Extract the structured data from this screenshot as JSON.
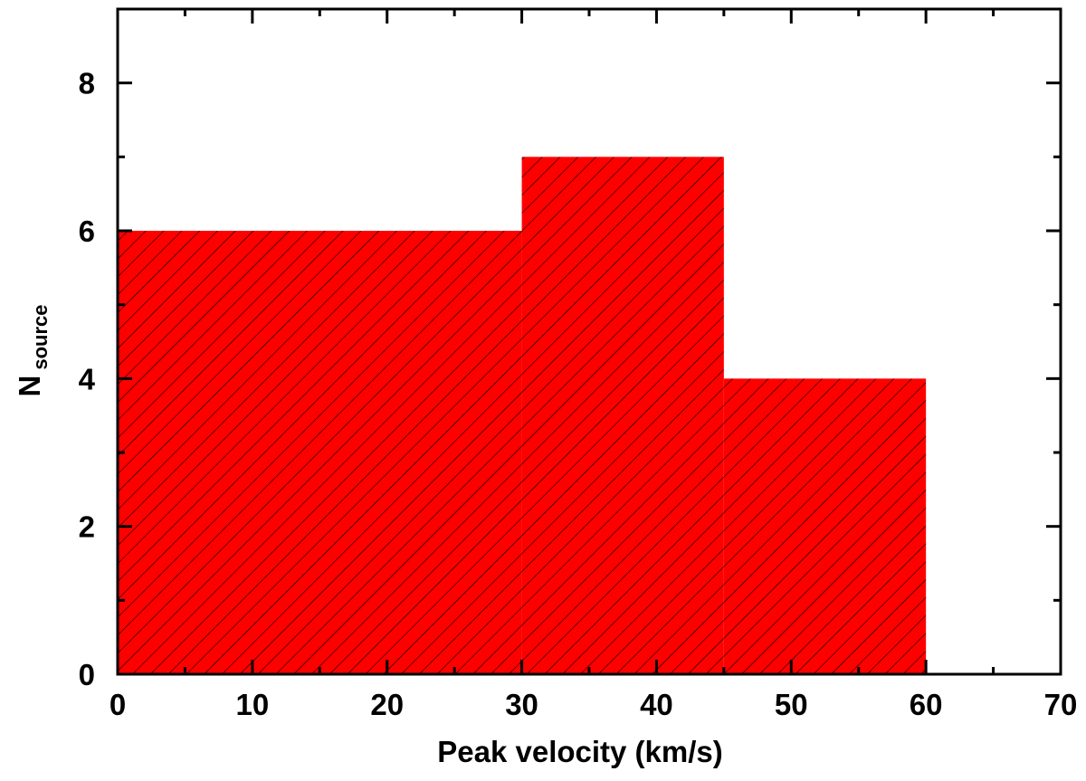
{
  "chart_data": {
    "type": "bar",
    "bins": [
      {
        "x0": 0,
        "x1": 30,
        "value": 6
      },
      {
        "x0": 30,
        "x1": 45,
        "value": 7
      },
      {
        "x0": 45,
        "x1": 60,
        "value": 4
      }
    ],
    "xlabel": "Peak velocity (km/s)",
    "ylabel_main": "N",
    "ylabel_sub": "source",
    "xlim": [
      0,
      70
    ],
    "ylim": [
      0,
      9
    ],
    "xticks": [
      0,
      10,
      20,
      30,
      40,
      50,
      60,
      70
    ],
    "yticks": [
      0,
      2,
      4,
      6,
      8
    ],
    "fill_color": "#ff0000",
    "hatch_color": "#000000",
    "grid": false
  }
}
